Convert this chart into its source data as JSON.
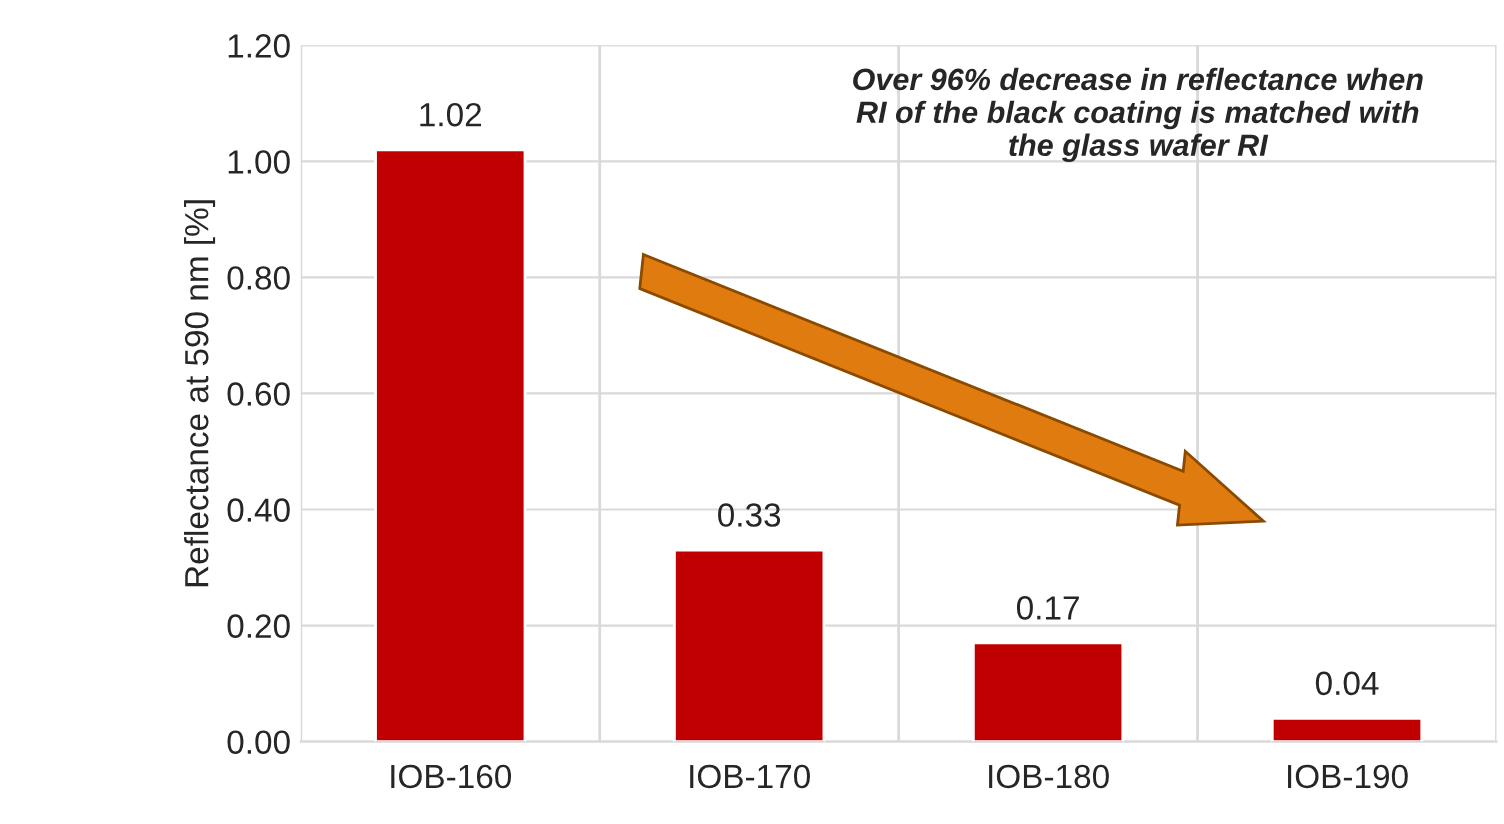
{
  "chart_data": {
    "type": "bar",
    "ylabel": "Reflectance at 590 nm [%]",
    "categories": [
      "IOB-160",
      "IOB-170",
      "IOB-180",
      "IOB-190"
    ],
    "values": [
      1.02,
      0.33,
      0.17,
      0.04
    ],
    "value_labels": [
      "1.02",
      "0.33",
      "0.17",
      "0.04"
    ],
    "color": "#c00000",
    "ylim": [
      0,
      1.2
    ],
    "yticks": [
      {
        "value": 0,
        "label": "0.00"
      },
      {
        "value": 0.2,
        "label": "0.20"
      },
      {
        "value": 0.4,
        "label": "0.40"
      },
      {
        "value": 0.6,
        "label": "0.60"
      },
      {
        "value": 0.8,
        "label": "0.80"
      },
      {
        "value": 1.0,
        "label": "1.00"
      },
      {
        "value": 1.2,
        "label": "1.20"
      }
    ],
    "grid": true,
    "annotations": [
      "Over 96% decrease in reflectance when\nRI of the black coating is matched with\nthe glass wafer RI"
    ]
  }
}
